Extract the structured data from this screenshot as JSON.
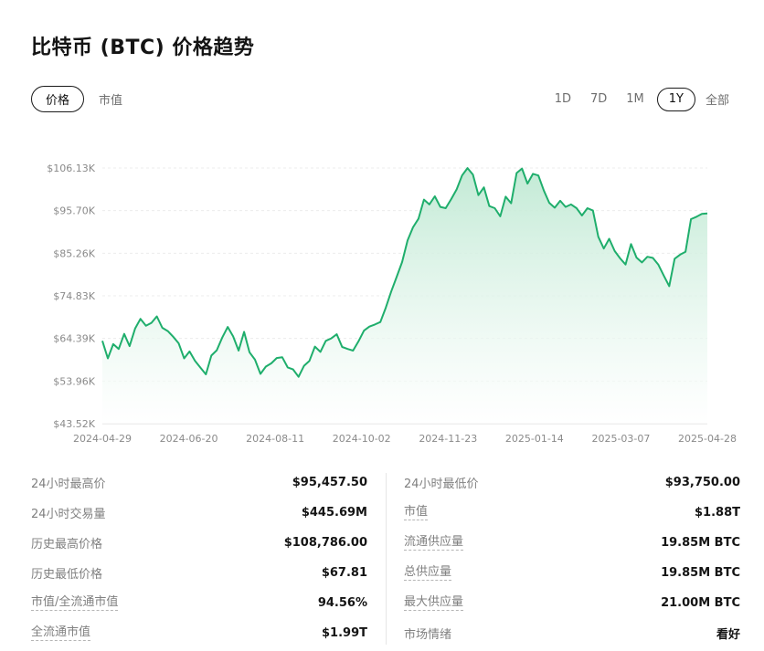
{
  "page": {
    "title": "比特币 (BTC) 价格趋势"
  },
  "view_tabs": {
    "price": "价格",
    "market_cap": "市值"
  },
  "ranges": {
    "d1": "1D",
    "d7": "7D",
    "m1": "1M",
    "y1": "1Y",
    "all": "全部",
    "selected": "1Y"
  },
  "colors": {
    "line": "#1fae6c",
    "fill_top": "#bfe9d3",
    "grid": "#ececec"
  },
  "chart_data": {
    "type": "area",
    "y_ticks": [
      "$106.13K",
      "$95.70K",
      "$85.26K",
      "$74.83K",
      "$64.39K",
      "$53.96K",
      "$43.52K"
    ],
    "x_ticks": [
      "2024-04-29",
      "2024-06-20",
      "2024-08-11",
      "2024-10-02",
      "2024-11-23",
      "2025-01-14",
      "2025-03-07",
      "2025-04-28"
    ],
    "ylim": [
      43520,
      106130
    ],
    "x_range": [
      "2024-04-29",
      "2025-04-28"
    ],
    "grid": true,
    "series": [
      {
        "values": [
          63800,
          59500,
          63000,
          61800,
          65500,
          62500,
          66800,
          69200,
          67500,
          68200,
          69800,
          67000,
          66200,
          64800,
          63200,
          59500,
          61200,
          58900,
          57200,
          55600,
          60200,
          61500,
          64600,
          67200,
          64900,
          61400,
          66000,
          61000,
          59200,
          55700,
          57500,
          58300,
          59600,
          59800,
          57300,
          56800,
          55000,
          57700,
          58900,
          62400,
          61100,
          63800,
          64400,
          65400,
          62300,
          61800,
          61400,
          63700,
          66300,
          67300,
          67800,
          68400,
          71900,
          75900,
          79500,
          83100,
          88400,
          91600,
          93700,
          98400,
          97200,
          99200,
          96600,
          96300,
          98500,
          100900,
          104300,
          106100,
          104500,
          99500,
          101400,
          96800,
          96300,
          94300,
          99100,
          97500,
          104900,
          106000,
          102300,
          104700,
          104300,
          100600,
          97600,
          96400,
          98100,
          96600,
          97200,
          96300,
          94500,
          96300,
          95700,
          89300,
          86400,
          88800,
          85800,
          84000,
          82500,
          87500,
          84200,
          83000,
          84400,
          84100,
          82500,
          79800,
          77200,
          83900,
          84900,
          85600,
          93600,
          94200,
          94900,
          95000
        ]
      }
    ]
  },
  "stats": {
    "left": [
      {
        "label": "24小时最高价",
        "value": "$95,457.50"
      },
      {
        "label": "24小时交易量",
        "value": "$445.69M"
      },
      {
        "label": "历史最高价格",
        "value": "$108,786.00"
      },
      {
        "label": "历史最低价格",
        "value": "$67.81"
      },
      {
        "label": "市值/全流通市值",
        "value": "94.56%"
      },
      {
        "label": "全流通市值",
        "value": "$1.99T"
      }
    ],
    "right": [
      {
        "label": "24小时最低价",
        "value": "$93,750.00"
      },
      {
        "label": "市值",
        "value": "$1.88T"
      },
      {
        "label": "流通供应量",
        "value": "19.85M BTC"
      },
      {
        "label": "总供应量",
        "value": "19.85M BTC"
      },
      {
        "label": "最大供应量",
        "value": "21.00M BTC"
      },
      {
        "label": "市场情绪",
        "value": "看好"
      }
    ]
  }
}
